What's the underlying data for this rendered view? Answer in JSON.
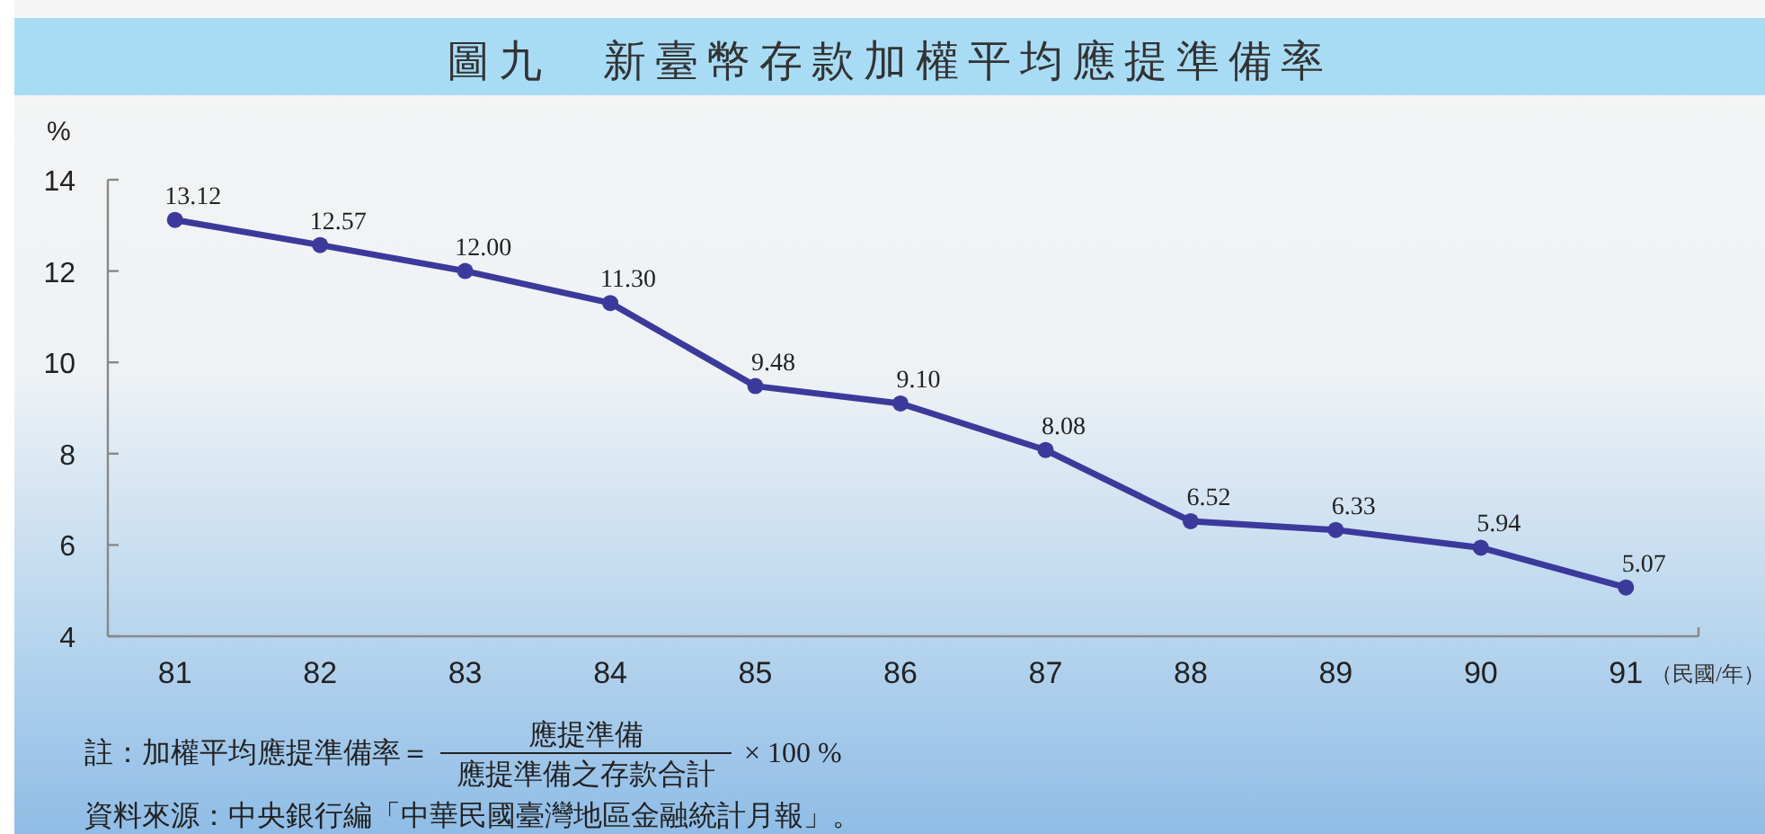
{
  "chart_data": {
    "type": "line",
    "title": "圖九　新臺幣存款加權平均應提準備率",
    "ylabel": "%",
    "xlabel": "（民國/年）",
    "categories": [
      "81",
      "82",
      "83",
      "84",
      "85",
      "86",
      "87",
      "88",
      "89",
      "90",
      "91"
    ],
    "series": [
      {
        "color": "#3b3a9c",
        "values": [
          13.12,
          12.57,
          12.0,
          11.3,
          9.48,
          9.1,
          8.08,
          6.52,
          6.33,
          5.94,
          5.07
        ]
      }
    ],
    "value_labels": [
      "13.12",
      "12.57",
      "12.00",
      "11.30",
      "9.48",
      "9.10",
      "8.08",
      "6.52",
      "6.33",
      "5.94",
      "5.07"
    ],
    "ylim": [
      4,
      14
    ],
    "yticks": [
      4,
      6,
      8,
      10,
      12,
      14
    ],
    "marker": "circle",
    "line_style": "solid",
    "grid": false,
    "annotations": [
      "註：加權平均應提準備率＝",
      "應提準備",
      "應提準備之存款合計",
      "× 100 %",
      "資料來源：中央銀行編「中華民國臺灣地區金融統計月報」。"
    ]
  }
}
